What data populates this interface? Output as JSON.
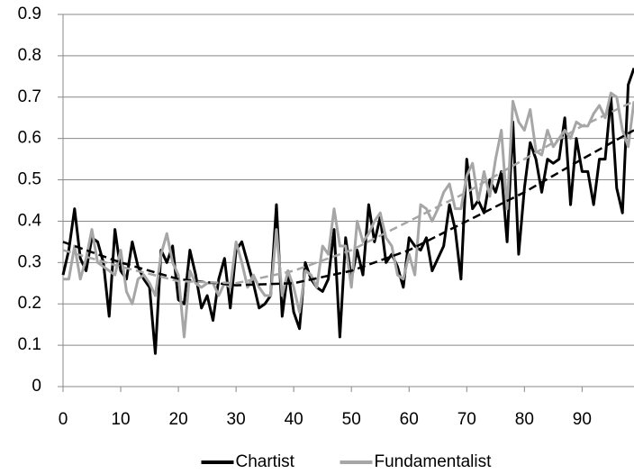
{
  "chart_data": {
    "type": "line",
    "x": [
      0,
      1,
      2,
      3,
      4,
      5,
      6,
      7,
      8,
      9,
      10,
      11,
      12,
      13,
      14,
      15,
      16,
      17,
      18,
      19,
      20,
      21,
      22,
      23,
      24,
      25,
      26,
      27,
      28,
      29,
      30,
      31,
      32,
      33,
      34,
      35,
      36,
      37,
      38,
      39,
      40,
      41,
      42,
      43,
      44,
      45,
      46,
      47,
      48,
      49,
      50,
      51,
      52,
      53,
      54,
      55,
      56,
      57,
      58,
      59,
      60,
      61,
      62,
      63,
      64,
      65,
      66,
      67,
      68,
      69,
      70,
      71,
      72,
      73,
      74,
      75,
      76,
      77,
      78,
      79,
      80,
      81,
      82,
      83,
      84,
      85,
      86,
      87,
      88,
      89,
      90,
      91,
      92,
      93,
      94,
      95,
      96,
      97,
      98,
      99
    ],
    "series": [
      {
        "name": "Chartist",
        "color": "#000000",
        "values": [
          0.27,
          0.33,
          0.43,
          0.31,
          0.28,
          0.36,
          0.35,
          0.3,
          0.17,
          0.38,
          0.28,
          0.26,
          0.35,
          0.29,
          0.26,
          0.24,
          0.08,
          0.33,
          0.3,
          0.34,
          0.21,
          0.2,
          0.33,
          0.27,
          0.19,
          0.22,
          0.16,
          0.26,
          0.31,
          0.19,
          0.33,
          0.35,
          0.3,
          0.25,
          0.19,
          0.2,
          0.22,
          0.44,
          0.17,
          0.28,
          0.18,
          0.14,
          0.3,
          0.26,
          0.24,
          0.23,
          0.26,
          0.38,
          0.12,
          0.36,
          0.26,
          0.33,
          0.27,
          0.44,
          0.35,
          0.41,
          0.3,
          0.32,
          0.29,
          0.24,
          0.36,
          0.34,
          0.33,
          0.36,
          0.28,
          0.31,
          0.34,
          0.44,
          0.38,
          0.26,
          0.55,
          0.43,
          0.45,
          0.42,
          0.5,
          0.47,
          0.52,
          0.35,
          0.64,
          0.32,
          0.48,
          0.59,
          0.55,
          0.47,
          0.55,
          0.54,
          0.55,
          0.65,
          0.44,
          0.6,
          0.52,
          0.52,
          0.44,
          0.55,
          0.55,
          0.7,
          0.48,
          0.42,
          0.73,
          0.77
        ]
      },
      {
        "name": "Fundamentalist",
        "color": "#a6a6a6",
        "values": [
          0.26,
          0.26,
          0.34,
          0.26,
          0.31,
          0.38,
          0.3,
          0.29,
          0.28,
          0.27,
          0.33,
          0.23,
          0.2,
          0.26,
          0.27,
          0.25,
          0.22,
          0.32,
          0.37,
          0.3,
          0.27,
          0.12,
          0.28,
          0.25,
          0.24,
          0.25,
          0.25,
          0.22,
          0.25,
          0.24,
          0.35,
          0.3,
          0.24,
          0.27,
          0.24,
          0.22,
          0.22,
          0.38,
          0.22,
          0.28,
          0.24,
          0.18,
          0.28,
          0.27,
          0.24,
          0.34,
          0.32,
          0.43,
          0.34,
          0.34,
          0.24,
          0.4,
          0.35,
          0.37,
          0.4,
          0.42,
          0.36,
          0.34,
          0.27,
          0.26,
          0.32,
          0.27,
          0.44,
          0.43,
          0.4,
          0.43,
          0.47,
          0.49,
          0.43,
          0.43,
          0.51,
          0.54,
          0.45,
          0.52,
          0.46,
          0.55,
          0.62,
          0.43,
          0.69,
          0.64,
          0.62,
          0.67,
          0.57,
          0.56,
          0.62,
          0.58,
          0.6,
          0.62,
          0.6,
          0.64,
          0.63,
          0.63,
          0.66,
          0.68,
          0.65,
          0.71,
          0.7,
          0.62,
          0.58,
          0.69
        ]
      },
      {
        "color": "#000000",
        "dashed": true,
        "x": [
          0,
          10,
          20,
          30,
          40,
          50,
          60,
          70,
          80,
          90,
          99
        ],
        "values": [
          0.35,
          0.3,
          0.26,
          0.245,
          0.25,
          0.28,
          0.33,
          0.4,
          0.47,
          0.55,
          0.62
        ]
      },
      {
        "color": "#a6a6a6",
        "dashed": true,
        "x": [
          0,
          10,
          20,
          30,
          40,
          50,
          60,
          70,
          80,
          90,
          99
        ],
        "values": [
          0.33,
          0.29,
          0.255,
          0.25,
          0.28,
          0.33,
          0.4,
          0.47,
          0.55,
          0.63,
          0.69
        ]
      }
    ],
    "xlim": [
      0,
      99
    ],
    "xticks": [
      0,
      10,
      20,
      30,
      40,
      50,
      60,
      70,
      80,
      90
    ],
    "ylim": [
      0,
      0.9
    ],
    "yticks": [
      0,
      0.1,
      0.2,
      0.3,
      0.4,
      0.5,
      0.6,
      0.7,
      0.8,
      0.9
    ],
    "grid": true,
    "legend": "bottom"
  }
}
